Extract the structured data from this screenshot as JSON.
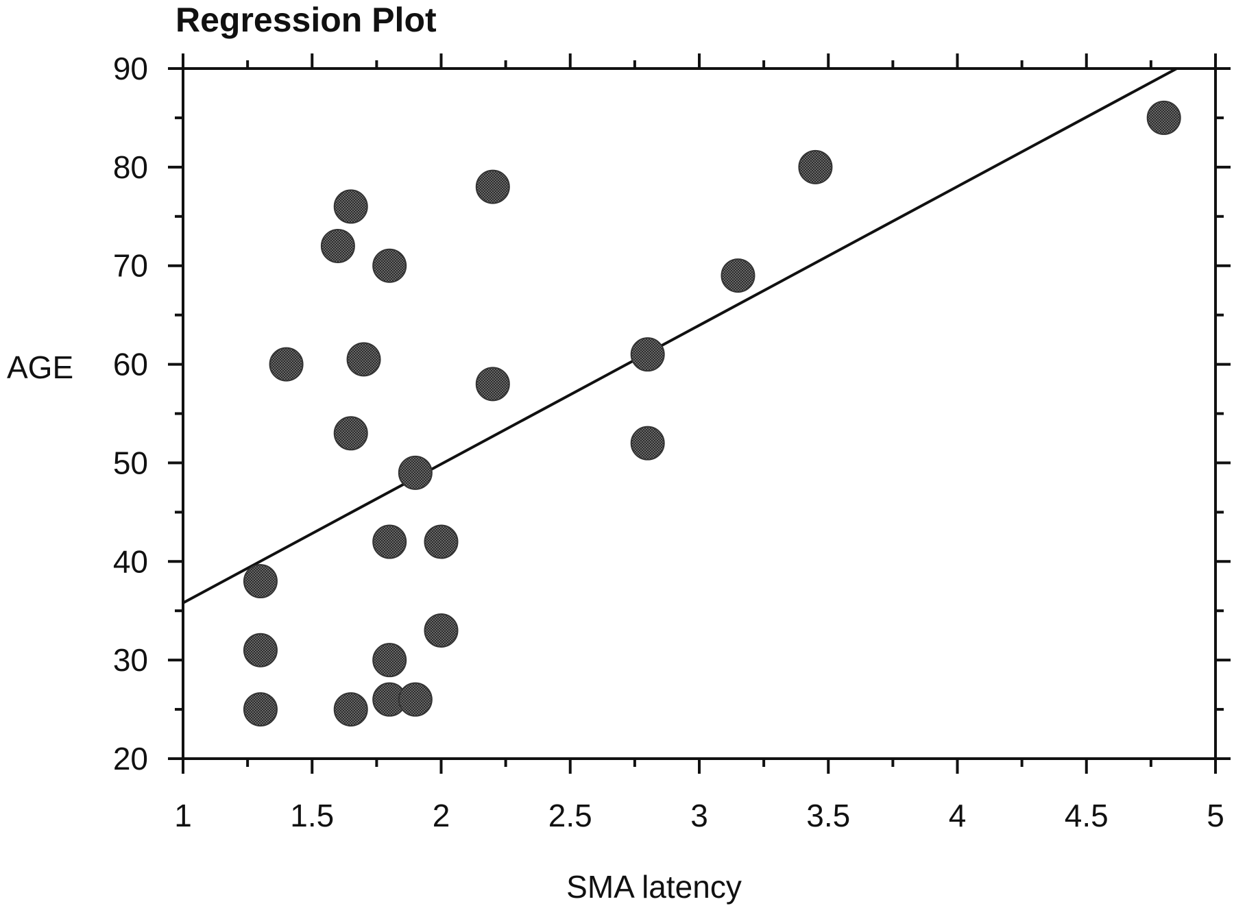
{
  "chart_data": {
    "type": "scatter",
    "title": "Regression Plot",
    "xlabel": "SMA latency",
    "ylabel": "AGE",
    "xlim": [
      1,
      5
    ],
    "ylim": [
      20,
      90
    ],
    "xticks": [
      "1",
      "1.5",
      "2",
      "2.5",
      "3",
      "3.5",
      "4",
      "4.5",
      "5"
    ],
    "yticks": [
      "20",
      "30",
      "40",
      "50",
      "60",
      "70",
      "80",
      "90"
    ],
    "grid": false,
    "legend": "none",
    "points": [
      {
        "x": 1.3,
        "y": 38
      },
      {
        "x": 1.3,
        "y": 31
      },
      {
        "x": 1.3,
        "y": 25
      },
      {
        "x": 1.4,
        "y": 60
      },
      {
        "x": 1.6,
        "y": 72
      },
      {
        "x": 1.65,
        "y": 76
      },
      {
        "x": 1.65,
        "y": 53
      },
      {
        "x": 1.65,
        "y": 25
      },
      {
        "x": 1.7,
        "y": 60.5
      },
      {
        "x": 1.8,
        "y": 70
      },
      {
        "x": 1.8,
        "y": 42
      },
      {
        "x": 1.8,
        "y": 30
      },
      {
        "x": 1.8,
        "y": 26
      },
      {
        "x": 1.9,
        "y": 26
      },
      {
        "x": 1.9,
        "y": 49
      },
      {
        "x": 2.0,
        "y": 42
      },
      {
        "x": 2.0,
        "y": 33
      },
      {
        "x": 2.2,
        "y": 78
      },
      {
        "x": 2.2,
        "y": 58
      },
      {
        "x": 2.8,
        "y": 61
      },
      {
        "x": 2.8,
        "y": 52
      },
      {
        "x": 3.15,
        "y": 69
      },
      {
        "x": 3.45,
        "y": 80
      },
      {
        "x": 4.8,
        "y": 85
      }
    ],
    "regression_line": {
      "x": [
        1,
        4.85
      ],
      "y": [
        35.8,
        90
      ]
    },
    "colors": {
      "marker": "#5a5a5a",
      "line": "#111111",
      "axes": "#111111"
    }
  }
}
